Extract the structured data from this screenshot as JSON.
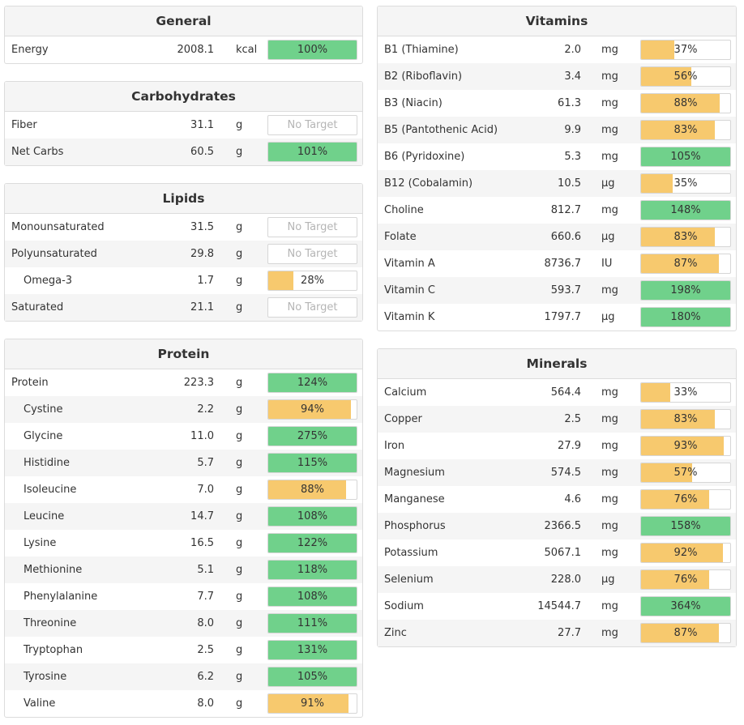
{
  "colors": {
    "green": "#70d18b",
    "orange": "#f7c96e",
    "header_bg": "#f5f5f5",
    "alt_row_bg": "#f5f5f5"
  },
  "left_panels": [
    {
      "title": "General",
      "rows": [
        {
          "name": "Energy",
          "amount": "2008.1",
          "unit": "kcal",
          "bar": {
            "text": "100%",
            "pct": 100,
            "status": "green"
          }
        }
      ]
    },
    {
      "title": "Carbohydrates",
      "rows": [
        {
          "name": "Fiber",
          "amount": "31.1",
          "unit": "g",
          "bar": {
            "text": "No Target",
            "pct": 0,
            "status": "none"
          }
        },
        {
          "name": "Net Carbs",
          "amount": "60.5",
          "unit": "g",
          "bar": {
            "text": "101%",
            "pct": 100,
            "status": "green"
          }
        }
      ]
    },
    {
      "title": "Lipids",
      "rows": [
        {
          "name": "Monounsaturated",
          "amount": "31.5",
          "unit": "g",
          "bar": {
            "text": "No Target",
            "pct": 0,
            "status": "none"
          }
        },
        {
          "name": "Polyunsaturated",
          "amount": "29.8",
          "unit": "g",
          "bar": {
            "text": "No Target",
            "pct": 0,
            "status": "none"
          }
        },
        {
          "name": "Omega-3",
          "amount": "1.7",
          "unit": "g",
          "indent": true,
          "bar": {
            "text": "28%",
            "pct": 28,
            "status": "orange"
          }
        },
        {
          "name": "Saturated",
          "amount": "21.1",
          "unit": "g",
          "bar": {
            "text": "No Target",
            "pct": 0,
            "status": "none"
          }
        }
      ]
    },
    {
      "title": "Protein",
      "rows": [
        {
          "name": "Protein",
          "amount": "223.3",
          "unit": "g",
          "bar": {
            "text": "124%",
            "pct": 100,
            "status": "green"
          }
        },
        {
          "name": "Cystine",
          "amount": "2.2",
          "unit": "g",
          "indent": true,
          "bar": {
            "text": "94%",
            "pct": 94,
            "status": "orange"
          }
        },
        {
          "name": "Glycine",
          "amount": "11.0",
          "unit": "g",
          "indent": true,
          "bar": {
            "text": "275%",
            "pct": 100,
            "status": "green"
          }
        },
        {
          "name": "Histidine",
          "amount": "5.7",
          "unit": "g",
          "indent": true,
          "bar": {
            "text": "115%",
            "pct": 100,
            "status": "green"
          }
        },
        {
          "name": "Isoleucine",
          "amount": "7.0",
          "unit": "g",
          "indent": true,
          "bar": {
            "text": "88%",
            "pct": 88,
            "status": "orange"
          }
        },
        {
          "name": "Leucine",
          "amount": "14.7",
          "unit": "g",
          "indent": true,
          "bar": {
            "text": "108%",
            "pct": 100,
            "status": "green"
          }
        },
        {
          "name": "Lysine",
          "amount": "16.5",
          "unit": "g",
          "indent": true,
          "bar": {
            "text": "122%",
            "pct": 100,
            "status": "green"
          }
        },
        {
          "name": "Methionine",
          "amount": "5.1",
          "unit": "g",
          "indent": true,
          "bar": {
            "text": "118%",
            "pct": 100,
            "status": "green"
          }
        },
        {
          "name": "Phenylalanine",
          "amount": "7.7",
          "unit": "g",
          "indent": true,
          "bar": {
            "text": "108%",
            "pct": 100,
            "status": "green"
          }
        },
        {
          "name": "Threonine",
          "amount": "8.0",
          "unit": "g",
          "indent": true,
          "bar": {
            "text": "111%",
            "pct": 100,
            "status": "green"
          }
        },
        {
          "name": "Tryptophan",
          "amount": "2.5",
          "unit": "g",
          "indent": true,
          "bar": {
            "text": "131%",
            "pct": 100,
            "status": "green"
          }
        },
        {
          "name": "Tyrosine",
          "amount": "6.2",
          "unit": "g",
          "indent": true,
          "bar": {
            "text": "105%",
            "pct": 100,
            "status": "green"
          }
        },
        {
          "name": "Valine",
          "amount": "8.0",
          "unit": "g",
          "indent": true,
          "bar": {
            "text": "91%",
            "pct": 91,
            "status": "orange"
          }
        }
      ]
    }
  ],
  "right_panels": [
    {
      "title": "Vitamins",
      "rows": [
        {
          "name": "B1 (Thiamine)",
          "amount": "2.0",
          "unit": "mg",
          "bar": {
            "text": "37%",
            "pct": 37,
            "status": "orange"
          }
        },
        {
          "name": "B2 (Riboflavin)",
          "amount": "3.4",
          "unit": "mg",
          "bar": {
            "text": "56%",
            "pct": 56,
            "status": "orange"
          }
        },
        {
          "name": "B3 (Niacin)",
          "amount": "61.3",
          "unit": "mg",
          "bar": {
            "text": "88%",
            "pct": 88,
            "status": "orange"
          }
        },
        {
          "name": "B5 (Pantothenic Acid)",
          "amount": "9.9",
          "unit": "mg",
          "bar": {
            "text": "83%",
            "pct": 83,
            "status": "orange"
          }
        },
        {
          "name": "B6 (Pyridoxine)",
          "amount": "5.3",
          "unit": "mg",
          "bar": {
            "text": "105%",
            "pct": 100,
            "status": "green"
          }
        },
        {
          "name": "B12 (Cobalamin)",
          "amount": "10.5",
          "unit": "µg",
          "bar": {
            "text": "35%",
            "pct": 35,
            "status": "orange"
          }
        },
        {
          "name": "Choline",
          "amount": "812.7",
          "unit": "mg",
          "bar": {
            "text": "148%",
            "pct": 100,
            "status": "green"
          }
        },
        {
          "name": "Folate",
          "amount": "660.6",
          "unit": "µg",
          "bar": {
            "text": "83%",
            "pct": 83,
            "status": "orange"
          }
        },
        {
          "name": "Vitamin A",
          "amount": "8736.7",
          "unit": "IU",
          "bar": {
            "text": "87%",
            "pct": 87,
            "status": "orange"
          }
        },
        {
          "name": "Vitamin C",
          "amount": "593.7",
          "unit": "mg",
          "bar": {
            "text": "198%",
            "pct": 100,
            "status": "green"
          }
        },
        {
          "name": "Vitamin K",
          "amount": "1797.7",
          "unit": "µg",
          "bar": {
            "text": "180%",
            "pct": 100,
            "status": "green"
          }
        }
      ]
    },
    {
      "title": "Minerals",
      "rows": [
        {
          "name": "Calcium",
          "amount": "564.4",
          "unit": "mg",
          "bar": {
            "text": "33%",
            "pct": 33,
            "status": "orange"
          }
        },
        {
          "name": "Copper",
          "amount": "2.5",
          "unit": "mg",
          "bar": {
            "text": "83%",
            "pct": 83,
            "status": "orange"
          }
        },
        {
          "name": "Iron",
          "amount": "27.9",
          "unit": "mg",
          "bar": {
            "text": "93%",
            "pct": 93,
            "status": "orange"
          }
        },
        {
          "name": "Magnesium",
          "amount": "574.5",
          "unit": "mg",
          "bar": {
            "text": "57%",
            "pct": 57,
            "status": "orange"
          }
        },
        {
          "name": "Manganese",
          "amount": "4.6",
          "unit": "mg",
          "bar": {
            "text": "76%",
            "pct": 76,
            "status": "orange"
          }
        },
        {
          "name": "Phosphorus",
          "amount": "2366.5",
          "unit": "mg",
          "bar": {
            "text": "158%",
            "pct": 100,
            "status": "green"
          }
        },
        {
          "name": "Potassium",
          "amount": "5067.1",
          "unit": "mg",
          "bar": {
            "text": "92%",
            "pct": 92,
            "status": "orange"
          }
        },
        {
          "name": "Selenium",
          "amount": "228.0",
          "unit": "µg",
          "bar": {
            "text": "76%",
            "pct": 76,
            "status": "orange"
          }
        },
        {
          "name": "Sodium",
          "amount": "14544.7",
          "unit": "mg",
          "bar": {
            "text": "364%",
            "pct": 100,
            "status": "green"
          }
        },
        {
          "name": "Zinc",
          "amount": "27.7",
          "unit": "mg",
          "bar": {
            "text": "87%",
            "pct": 87,
            "status": "orange"
          }
        }
      ]
    }
  ]
}
